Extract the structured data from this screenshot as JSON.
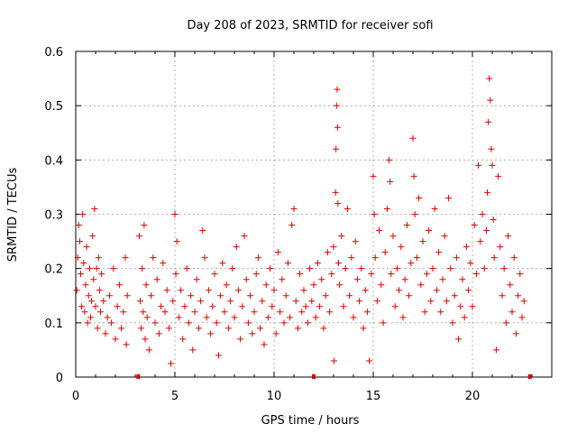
{
  "chart_data": {
    "type": "scatter",
    "title": "Day 208 of 2023, SRMTID for receiver sofi",
    "xlabel": "GPS time / hours",
    "ylabel": "SRMTID / TECUs",
    "xlim": [
      0,
      24
    ],
    "ylim": [
      0,
      0.6
    ],
    "grid": true,
    "x_ticks": [
      0,
      5,
      10,
      15,
      20
    ],
    "x_tick_labels": [
      "0",
      "5",
      "10",
      "15",
      "20"
    ],
    "y_ticks": [
      0,
      0.1,
      0.2,
      0.3,
      0.4,
      0.5,
      0.6
    ],
    "y_tick_labels": [
      "0",
      "0.1",
      "0.2",
      "0.3",
      "0.4",
      "0.5",
      "0.6"
    ],
    "marker": "plus",
    "series": [
      {
        "name": "SRMTID",
        "color": "#e00000",
        "points": [
          [
            0.05,
            0.16
          ],
          [
            0.1,
            0.22
          ],
          [
            0.15,
            0.28
          ],
          [
            0.2,
            0.25
          ],
          [
            0.25,
            0.19
          ],
          [
            0.3,
            0.13
          ],
          [
            0.35,
            0.3
          ],
          [
            0.4,
            0.21
          ],
          [
            0.45,
            0.12
          ],
          [
            0.5,
            0.17
          ],
          [
            0.55,
            0.24
          ],
          [
            0.6,
            0.1
          ],
          [
            0.65,
            0.15
          ],
          [
            0.7,
            0.2
          ],
          [
            0.75,
            0.11
          ],
          [
            0.8,
            0.14
          ],
          [
            0.85,
            0.26
          ],
          [
            0.9,
            0.18
          ],
          [
            0.95,
            0.31
          ],
          [
            1.0,
            0.13
          ],
          [
            1.05,
            0.2
          ],
          [
            1.1,
            0.09
          ],
          [
            1.15,
            0.22
          ],
          [
            1.2,
            0.16
          ],
          [
            1.25,
            0.12
          ],
          [
            1.3,
            0.19
          ],
          [
            1.4,
            0.14
          ],
          [
            1.5,
            0.08
          ],
          [
            1.6,
            0.11
          ],
          [
            1.7,
            0.15
          ],
          [
            1.8,
            0.1
          ],
          [
            1.9,
            0.2
          ],
          [
            2.0,
            0.07
          ],
          [
            2.1,
            0.13
          ],
          [
            2.2,
            0.17
          ],
          [
            2.3,
            0.09
          ],
          [
            2.4,
            0.12
          ],
          [
            2.5,
            0.22
          ],
          [
            2.55,
            0.06
          ],
          [
            2.6,
            0.15
          ],
          [
            3.2,
            0.26
          ],
          [
            3.25,
            0.14
          ],
          [
            3.3,
            0.09
          ],
          [
            3.35,
            0.2
          ],
          [
            3.4,
            0.12
          ],
          [
            3.45,
            0.28
          ],
          [
            3.5,
            0.07
          ],
          [
            3.55,
            0.17
          ],
          [
            3.6,
            0.11
          ],
          [
            3.7,
            0.05
          ],
          [
            3.8,
            0.15
          ],
          [
            3.9,
            0.22
          ],
          [
            4.0,
            0.1
          ],
          [
            4.1,
            0.18
          ],
          [
            4.2,
            0.08
          ],
          [
            4.3,
            0.13
          ],
          [
            4.4,
            0.21
          ],
          [
            4.5,
            0.12
          ],
          [
            4.6,
            0.16
          ],
          [
            4.7,
            0.09
          ],
          [
            4.8,
            0.025
          ],
          [
            4.9,
            0.14
          ],
          [
            5.0,
            0.3
          ],
          [
            5.05,
            0.19
          ],
          [
            5.1,
            0.25
          ],
          [
            5.2,
            0.11
          ],
          [
            5.3,
            0.16
          ],
          [
            5.4,
            0.07
          ],
          [
            5.5,
            0.13
          ],
          [
            5.6,
            0.2
          ],
          [
            5.7,
            0.1
          ],
          [
            5.8,
            0.15
          ],
          [
            5.9,
            0.05
          ],
          [
            6.0,
            0.12
          ],
          [
            6.1,
            0.18
          ],
          [
            6.2,
            0.09
          ],
          [
            6.3,
            0.14
          ],
          [
            6.4,
            0.27
          ],
          [
            6.5,
            0.22
          ],
          [
            6.6,
            0.11
          ],
          [
            6.7,
            0.16
          ],
          [
            6.8,
            0.08
          ],
          [
            6.9,
            0.13
          ],
          [
            7.0,
            0.19
          ],
          [
            7.1,
            0.1
          ],
          [
            7.2,
            0.04
          ],
          [
            7.3,
            0.15
          ],
          [
            7.4,
            0.21
          ],
          [
            7.5,
            0.12
          ],
          [
            7.6,
            0.17
          ],
          [
            7.7,
            0.09
          ],
          [
            7.8,
            0.14
          ],
          [
            7.9,
            0.2
          ],
          [
            8.0,
            0.11
          ],
          [
            8.1,
            0.24
          ],
          [
            8.2,
            0.16
          ],
          [
            8.3,
            0.07
          ],
          [
            8.4,
            0.13
          ],
          [
            8.5,
            0.26
          ],
          [
            8.6,
            0.18
          ],
          [
            8.7,
            0.1
          ],
          [
            8.8,
            0.15
          ],
          [
            8.9,
            0.08
          ],
          [
            9.0,
            0.12
          ],
          [
            9.1,
            0.19
          ],
          [
            9.2,
            0.22
          ],
          [
            9.3,
            0.09
          ],
          [
            9.4,
            0.14
          ],
          [
            9.5,
            0.06
          ],
          [
            9.6,
            0.17
          ],
          [
            9.7,
            0.11
          ],
          [
            9.8,
            0.2
          ],
          [
            9.9,
            0.13
          ],
          [
            10.0,
            0.16
          ],
          [
            10.1,
            0.08
          ],
          [
            10.2,
            0.23
          ],
          [
            10.3,
            0.12
          ],
          [
            10.4,
            0.18
          ],
          [
            10.5,
            0.1
          ],
          [
            10.6,
            0.15
          ],
          [
            10.7,
            0.21
          ],
          [
            10.8,
            0.11
          ],
          [
            10.9,
            0.28
          ],
          [
            11.0,
            0.31
          ],
          [
            11.1,
            0.14
          ],
          [
            11.2,
            0.09
          ],
          [
            11.3,
            0.19
          ],
          [
            11.4,
            0.12
          ],
          [
            11.5,
            0.16
          ],
          [
            11.6,
            0.13
          ],
          [
            11.7,
            0.1
          ],
          [
            11.8,
            0.2
          ],
          [
            11.9,
            0.14
          ],
          [
            12.0,
            0.17
          ],
          [
            12.1,
            0.11
          ],
          [
            12.2,
            0.21
          ],
          [
            12.3,
            0.13
          ],
          [
            12.4,
            0.18
          ],
          [
            12.5,
            0.09
          ],
          [
            12.6,
            0.15
          ],
          [
            12.7,
            0.23
          ],
          [
            12.8,
            0.12
          ],
          [
            12.9,
            0.19
          ],
          [
            13.0,
            0.24
          ],
          [
            13.02,
            0.03
          ],
          [
            13.1,
            0.34
          ],
          [
            13.12,
            0.42
          ],
          [
            13.15,
            0.5
          ],
          [
            13.18,
            0.53
          ],
          [
            13.2,
            0.46
          ],
          [
            13.22,
            0.32
          ],
          [
            13.25,
            0.21
          ],
          [
            13.3,
            0.17
          ],
          [
            13.4,
            0.26
          ],
          [
            13.5,
            0.13
          ],
          [
            13.6,
            0.2
          ],
          [
            13.7,
            0.31
          ],
          [
            13.8,
            0.15
          ],
          [
            13.9,
            0.22
          ],
          [
            14.0,
            0.11
          ],
          [
            14.1,
            0.25
          ],
          [
            14.2,
            0.18
          ],
          [
            14.3,
            0.14
          ],
          [
            14.4,
            0.2
          ],
          [
            14.5,
            0.09
          ],
          [
            14.6,
            0.16
          ],
          [
            14.7,
            0.12
          ],
          [
            14.8,
            0.03
          ],
          [
            14.9,
            0.19
          ],
          [
            15.0,
            0.37
          ],
          [
            15.05,
            0.3
          ],
          [
            15.1,
            0.22
          ],
          [
            15.2,
            0.14
          ],
          [
            15.3,
            0.27
          ],
          [
            15.4,
            0.17
          ],
          [
            15.5,
            0.1
          ],
          [
            15.6,
            0.23
          ],
          [
            15.7,
            0.31
          ],
          [
            15.8,
            0.4
          ],
          [
            15.85,
            0.36
          ],
          [
            15.9,
            0.19
          ],
          [
            16.0,
            0.26
          ],
          [
            16.1,
            0.13
          ],
          [
            16.2,
            0.2
          ],
          [
            16.3,
            0.16
          ],
          [
            16.4,
            0.24
          ],
          [
            16.5,
            0.11
          ],
          [
            16.6,
            0.18
          ],
          [
            16.7,
            0.28
          ],
          [
            16.8,
            0.15
          ],
          [
            16.9,
            0.21
          ],
          [
            17.0,
            0.44
          ],
          [
            17.05,
            0.37
          ],
          [
            17.1,
            0.3
          ],
          [
            17.2,
            0.22
          ],
          [
            17.3,
            0.33
          ],
          [
            17.4,
            0.17
          ],
          [
            17.5,
            0.25
          ],
          [
            17.6,
            0.12
          ],
          [
            17.7,
            0.19
          ],
          [
            17.8,
            0.27
          ],
          [
            17.9,
            0.14
          ],
          [
            18.0,
            0.2
          ],
          [
            18.1,
            0.31
          ],
          [
            18.2,
            0.16
          ],
          [
            18.3,
            0.23
          ],
          [
            18.4,
            0.12
          ],
          [
            18.5,
            0.18
          ],
          [
            18.6,
            0.26
          ],
          [
            18.7,
            0.14
          ],
          [
            18.8,
            0.33
          ],
          [
            18.9,
            0.2
          ],
          [
            19.0,
            0.1
          ],
          [
            19.1,
            0.15
          ],
          [
            19.2,
            0.22
          ],
          [
            19.3,
            0.07
          ],
          [
            19.4,
            0.13
          ],
          [
            19.5,
            0.18
          ],
          [
            19.6,
            0.11
          ],
          [
            19.7,
            0.24
          ],
          [
            19.8,
            0.16
          ],
          [
            19.9,
            0.21
          ],
          [
            20.0,
            0.13
          ],
          [
            20.1,
            0.28
          ],
          [
            20.2,
            0.19
          ],
          [
            20.3,
            0.39
          ],
          [
            20.4,
            0.25
          ],
          [
            20.5,
            0.3
          ],
          [
            20.6,
            0.2
          ],
          [
            20.7,
            0.27
          ],
          [
            20.75,
            0.34
          ],
          [
            20.8,
            0.47
          ],
          [
            20.85,
            0.55
          ],
          [
            20.9,
            0.51
          ],
          [
            20.95,
            0.42
          ],
          [
            21.0,
            0.39
          ],
          [
            21.05,
            0.29
          ],
          [
            21.1,
            0.22
          ],
          [
            21.2,
            0.05
          ],
          [
            21.3,
            0.37
          ],
          [
            21.4,
            0.24
          ],
          [
            21.5,
            0.15
          ],
          [
            21.6,
            0.2
          ],
          [
            21.7,
            0.1
          ],
          [
            21.8,
            0.26
          ],
          [
            21.9,
            0.17
          ],
          [
            22.0,
            0.12
          ],
          [
            22.1,
            0.22
          ],
          [
            22.2,
            0.08
          ],
          [
            22.3,
            0.15
          ],
          [
            22.4,
            0.19
          ],
          [
            22.5,
            0.11
          ],
          [
            22.6,
            0.14
          ]
        ]
      }
    ],
    "axis_markers": [
      3.15,
      12.0,
      22.9
    ]
  }
}
